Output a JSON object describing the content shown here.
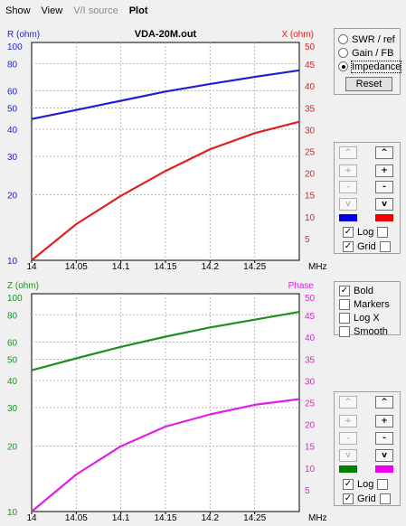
{
  "menu": {
    "items": [
      {
        "label": "Show",
        "enabled": true,
        "bold": false
      },
      {
        "label": "View",
        "enabled": true,
        "bold": false
      },
      {
        "label": "V/I source",
        "enabled": false,
        "bold": false
      },
      {
        "label": "Plot",
        "enabled": true,
        "bold": true
      }
    ]
  },
  "chart_data": [
    {
      "type": "line",
      "title": "VDA-20M.out",
      "left_axis_label": "R (ohm)",
      "right_axis_label": "X (ohm)",
      "x_unit": "MHz",
      "left_scale": "log",
      "xlim": [
        14,
        14.3
      ],
      "ylim_left": [
        10,
        100
      ],
      "ylim_right": [
        0,
        50
      ],
      "x_ticks": [
        "14",
        "14.05",
        "14.1",
        "14.15",
        "14.2",
        "14.25"
      ],
      "left_ticks": [
        "100",
        "80",
        "60",
        "50",
        "40",
        "30",
        "20",
        "10"
      ],
      "right_ticks": [
        "50",
        "45",
        "40",
        "35",
        "30",
        "25",
        "20",
        "15",
        "10",
        "5"
      ],
      "grid": true,
      "series": [
        {
          "axis": "left",
          "color": "#1f1fd0",
          "x": [
            14,
            14.05,
            14.1,
            14.15,
            14.2,
            14.25,
            14.3
          ],
          "y": [
            44.5,
            49,
            54,
            59.5,
            64.5,
            69.5,
            74.5
          ]
        },
        {
          "axis": "right",
          "color": "#e02020",
          "x": [
            14,
            14.05,
            14.1,
            14.15,
            14.2,
            14.25,
            14.3
          ],
          "y": [
            0,
            8.3,
            14.8,
            20.5,
            25.5,
            29.2,
            31.8
          ]
        }
      ]
    },
    {
      "type": "line",
      "title": "",
      "left_axis_label": "Z (ohm)",
      "right_axis_label": "Phase",
      "x_unit": "MHz",
      "left_scale": "log",
      "xlim": [
        14,
        14.3
      ],
      "ylim_left": [
        10,
        100
      ],
      "ylim_right": [
        0,
        50
      ],
      "x_ticks": [
        "14",
        "14.05",
        "14.1",
        "14.15",
        "14.2",
        "14.25"
      ],
      "left_ticks": [
        "100",
        "80",
        "60",
        "50",
        "40",
        "30",
        "20",
        "10"
      ],
      "right_ticks": [
        "50",
        "45",
        "40",
        "35",
        "30",
        "25",
        "20",
        "15",
        "10",
        "5"
      ],
      "grid": true,
      "series": [
        {
          "axis": "left",
          "color": "#1f8f1f",
          "x": [
            14,
            14.05,
            14.1,
            14.15,
            14.2,
            14.25,
            14.3
          ],
          "y": [
            44.5,
            50.5,
            57,
            63.5,
            70,
            76,
            82.5
          ]
        },
        {
          "axis": "right",
          "color": "#e020e0",
          "x": [
            14,
            14.05,
            14.1,
            14.15,
            14.2,
            14.25,
            14.3
          ],
          "y": [
            0,
            8.5,
            15,
            19.5,
            22.3,
            24.5,
            25.8
          ]
        }
      ]
    }
  ],
  "mode_panel": {
    "options": [
      {
        "label": "SWR / ref",
        "selected": false
      },
      {
        "label": "Gain / FB",
        "selected": false
      },
      {
        "label": "Impedance",
        "selected": true
      }
    ],
    "reset_label": "Reset"
  },
  "scale_panel_top": {
    "left_color": "#0000e0",
    "right_color": "#ee0000",
    "log_label": "Log",
    "grid_label": "Grid",
    "log_left": true,
    "log_right": false,
    "grid_left": true,
    "grid_right": false
  },
  "options_panel": {
    "items": [
      {
        "label": "Bold",
        "checked": true
      },
      {
        "label": "Markers",
        "checked": false
      },
      {
        "label": "Log X",
        "checked": false
      },
      {
        "label": "Smooth",
        "checked": false
      }
    ]
  },
  "scale_panel_bottom": {
    "left_color": "#008000",
    "right_color": "#ee00ee",
    "log_label": "Log",
    "grid_label": "Grid",
    "log_left": true,
    "log_right": false,
    "grid_left": true,
    "grid_right": false
  },
  "spin_glyphs": {
    "up": "^",
    "plus": "+",
    "minus": "-",
    "down": "v"
  }
}
